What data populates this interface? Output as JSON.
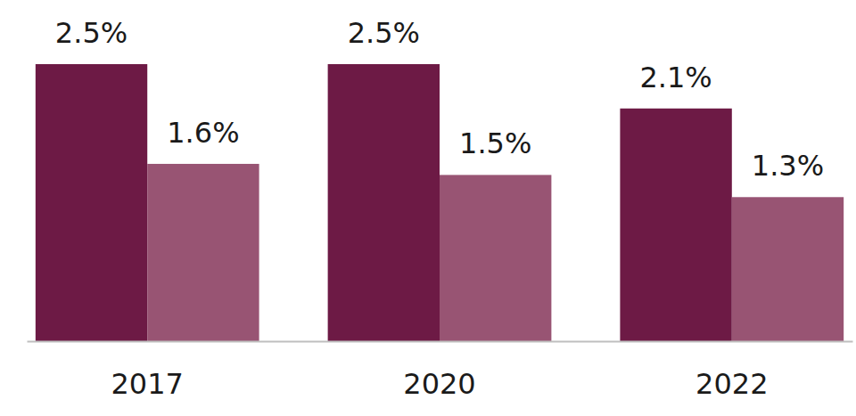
{
  "chart_data": {
    "type": "bar",
    "categories": [
      "2017",
      "2020",
      "2022"
    ],
    "series": [
      {
        "color": "#6d1a45",
        "values": [
          2.5,
          2.5,
          2.1
        ],
        "value_labels": [
          "2.5%",
          "2.5%",
          "2.1%"
        ]
      },
      {
        "color": "#985473",
        "values": [
          1.6,
          1.5,
          1.3
        ],
        "value_labels": [
          "1.6%",
          "1.5%",
          "1.3%"
        ]
      }
    ],
    "ylim": [
      0,
      2.5
    ],
    "data_labels": true,
    "tick_labels": "x"
  }
}
